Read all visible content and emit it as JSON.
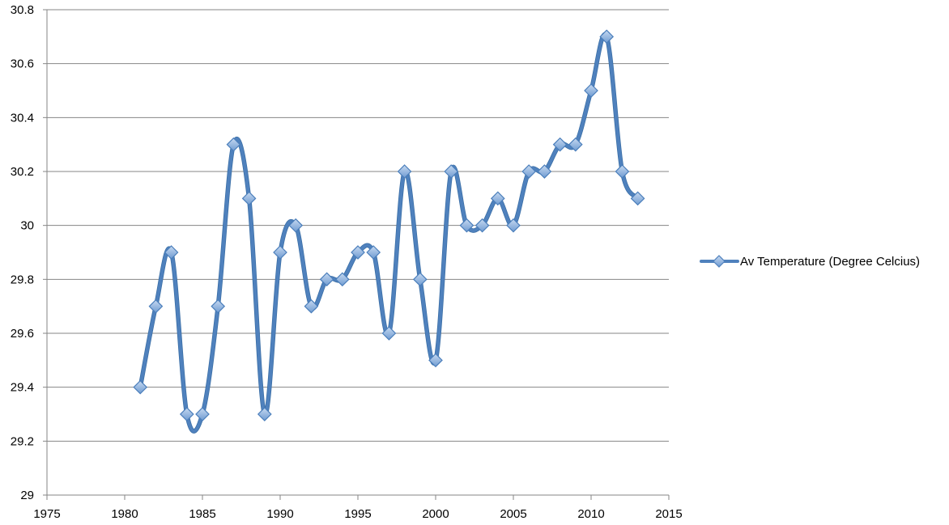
{
  "chart_data": {
    "type": "line",
    "title": "",
    "xlabel": "",
    "ylabel": "",
    "xlim": [
      1975,
      2015
    ],
    "ylim": [
      29,
      30.8
    ],
    "x_ticks": [
      1975,
      1980,
      1985,
      1990,
      1995,
      2000,
      2005,
      2010,
      2015
    ],
    "y_ticks": [
      29,
      29.2,
      29.4,
      29.6,
      29.8,
      30,
      30.2,
      30.4,
      30.6,
      30.8
    ],
    "x_tick_labels": [
      "1975",
      "1980",
      "1985",
      "1990",
      "1995",
      "2000",
      "2005",
      "2010",
      "2015"
    ],
    "y_tick_labels": [
      "29",
      "29.2",
      "29.4",
      "29.6",
      "29.8",
      "30",
      "30.2",
      "30.4",
      "30.6",
      "30.8"
    ],
    "grid": "horizontal",
    "legend_position": "right",
    "smooth": true,
    "series": [
      {
        "name": "Av Temperature (Degree Celcius)",
        "color": "#4f81bd",
        "marker": "diamond",
        "x": [
          1981,
          1982,
          1983,
          1984,
          1985,
          1986,
          1987,
          1988,
          1989,
          1990,
          1991,
          1992,
          1993,
          1994,
          1995,
          1996,
          1997,
          1998,
          1999,
          2000,
          2001,
          2002,
          2003,
          2004,
          2005,
          2006,
          2007,
          2008,
          2009,
          2010,
          2011,
          2012,
          2013
        ],
        "y": [
          29.4,
          29.7,
          29.9,
          29.3,
          29.3,
          29.7,
          30.3,
          30.1,
          29.3,
          29.9,
          30.0,
          29.7,
          29.8,
          29.8,
          29.9,
          29.9,
          29.6,
          30.2,
          29.8,
          29.5,
          30.2,
          30.0,
          30.0,
          30.1,
          30.0,
          30.2,
          30.2,
          30.3,
          30.3,
          30.5,
          30.7,
          30.2,
          30.1
        ]
      }
    ]
  }
}
